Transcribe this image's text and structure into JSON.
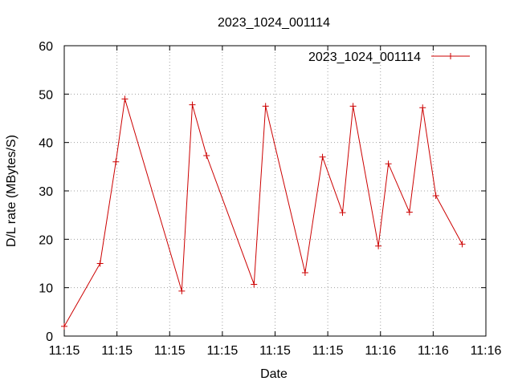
{
  "chart_data": {
    "type": "line",
    "title": "2023_1024_001114",
    "xlabel": "Date",
    "ylabel": "D/L rate (MBytes/S)",
    "ylim": [
      0,
      60
    ],
    "yticks": [
      0,
      10,
      20,
      30,
      40,
      50,
      60
    ],
    "xlim": [
      0,
      8
    ],
    "xticks": [
      {
        "x": 0,
        "label": "11:15"
      },
      {
        "x": 1,
        "label": "11:15"
      },
      {
        "x": 2,
        "label": "11:15"
      },
      {
        "x": 3,
        "label": "11:15"
      },
      {
        "x": 4,
        "label": "11:15"
      },
      {
        "x": 5,
        "label": "11:15"
      },
      {
        "x": 6,
        "label": "11:16"
      },
      {
        "x": 7,
        "label": "11:16"
      },
      {
        "x": 8,
        "label": "11:16"
      }
    ],
    "grid": true,
    "legend_position": "top-right",
    "series": [
      {
        "name": "2023_1024_001114",
        "color": "#cc0000",
        "marker": "plus",
        "points": [
          {
            "x": 0.0,
            "y": 2
          },
          {
            "x": 0.68,
            "y": 15
          },
          {
            "x": 0.98,
            "y": 36
          },
          {
            "x": 1.15,
            "y": 49
          },
          {
            "x": 2.23,
            "y": 9.3
          },
          {
            "x": 2.43,
            "y": 47.8
          },
          {
            "x": 2.7,
            "y": 37.3
          },
          {
            "x": 3.6,
            "y": 10.7
          },
          {
            "x": 3.82,
            "y": 47.5
          },
          {
            "x": 4.57,
            "y": 13.1
          },
          {
            "x": 4.9,
            "y": 37
          },
          {
            "x": 5.28,
            "y": 25.5
          },
          {
            "x": 5.48,
            "y": 47.5
          },
          {
            "x": 5.96,
            "y": 18.6
          },
          {
            "x": 6.15,
            "y": 35.6
          },
          {
            "x": 6.55,
            "y": 25.6
          },
          {
            "x": 6.8,
            "y": 47.2
          },
          {
            "x": 7.05,
            "y": 29
          },
          {
            "x": 7.55,
            "y": 19
          }
        ]
      }
    ]
  }
}
